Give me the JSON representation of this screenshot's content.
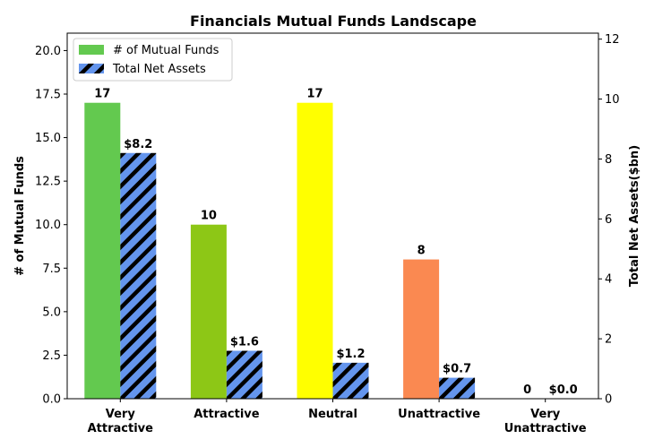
{
  "chart_data": {
    "type": "bar",
    "title": "Financials Mutual Funds Landscape",
    "categories": [
      [
        "Very",
        "Attractive"
      ],
      [
        "Attractive"
      ],
      [
        "Neutral"
      ],
      [
        "Unattractive"
      ],
      [
        "Very",
        "Unattractive"
      ]
    ],
    "ylabel_left": "# of Mutual Funds",
    "ylabel_right": "Total Net Assets($bn)",
    "ylim_left": [
      0,
      21
    ],
    "ylim_right": [
      0,
      12.2
    ],
    "yticks_left": [
      "0.0",
      "2.5",
      "5.0",
      "7.5",
      "10.0",
      "12.5",
      "15.0",
      "17.5",
      "20.0"
    ],
    "yticks_right": [
      "0",
      "2",
      "4",
      "6",
      "8",
      "10",
      "12"
    ],
    "legend_position": "top-left",
    "series": [
      {
        "name": "# of Mutual Funds",
        "axis": "left",
        "values": [
          17,
          10,
          17,
          8,
          0
        ],
        "labels": [
          "17",
          "10",
          "17",
          "8",
          "0"
        ],
        "colors": [
          "#63c94f",
          "#8dc716",
          "#ffff00",
          "#fa8951",
          "#ff5b4b"
        ],
        "legend_color": "#63c94f"
      },
      {
        "name": "Total Net Assets",
        "axis": "right",
        "values": [
          8.2,
          1.6,
          1.2,
          0.7,
          0.0
        ],
        "labels": [
          "$8.2",
          "$1.6",
          "$1.2",
          "$0.7",
          "$0.0"
        ],
        "color": "#6495ed",
        "hatch": "diagonal"
      }
    ]
  }
}
